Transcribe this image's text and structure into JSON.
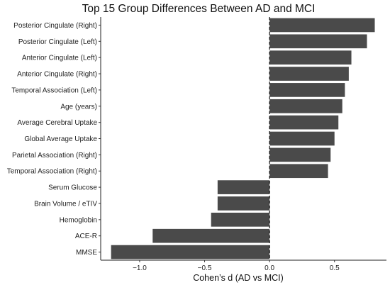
{
  "chart_data": {
    "type": "bar",
    "orientation": "horizontal",
    "title": "Top 15 Group Differences Between AD and MCI",
    "xlabel": "Cohen’s d (AD vs MCI)",
    "ylabel": "",
    "categories": [
      "Posterior Cingulate (Right)",
      "Posterior Cingulate (Left)",
      "Anterior Cingulate (Left)",
      "Anterior Cingulate (Right)",
      "Temporal Association (Left)",
      "Age (years)",
      "Average Cerebral Uptake",
      "Global Average Uptake",
      "Parietal Association (Right)",
      "Temporal Association (Right)",
      "Serum Glucose",
      "Brain Volume / eTIV",
      "Hemoglobin",
      "ACE-R",
      "MMSE"
    ],
    "values": [
      0.81,
      0.75,
      0.63,
      0.61,
      0.58,
      0.56,
      0.53,
      0.5,
      0.47,
      0.45,
      -0.4,
      -0.4,
      -0.45,
      -0.9,
      -1.22
    ],
    "xlim": [
      -1.3,
      0.9
    ],
    "xticks": [
      -1.0,
      -0.5,
      0.0,
      0.5
    ],
    "xtick_labels": [
      "−1.0",
      "−0.5",
      "0.0",
      "0.5"
    ],
    "reference_line": {
      "x": 0,
      "style": "dashed"
    },
    "bar_color": "#4a4a4a",
    "grid": false,
    "legend": "none"
  }
}
